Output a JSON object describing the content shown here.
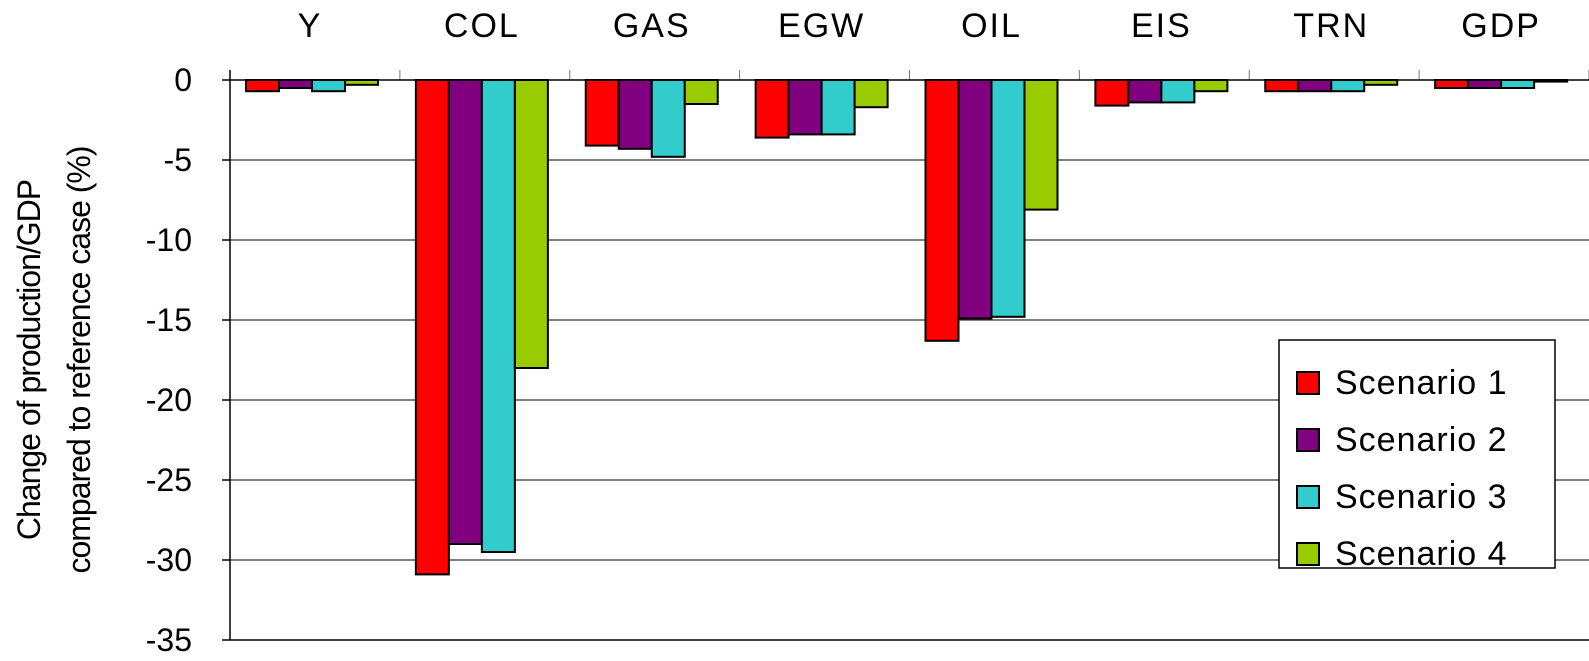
{
  "chart_data": {
    "type": "bar",
    "title": "",
    "xlabel": "",
    "ylabel": [
      "Change of production/GDP",
      "compared to reference case (%)"
    ],
    "categories": [
      "Y",
      "COL",
      "GAS",
      "EGW",
      "OIL",
      "EIS",
      "TRN",
      "GDP"
    ],
    "series": [
      {
        "name": "Scenario 1",
        "color": "#ff0000",
        "values": [
          -0.7,
          -30.9,
          -4.1,
          -3.6,
          -16.3,
          -1.6,
          -0.7,
          -0.5
        ]
      },
      {
        "name": "Scenario 2",
        "color": "#800080",
        "values": [
          -0.5,
          -29.0,
          -4.3,
          -3.4,
          -14.9,
          -1.4,
          -0.7,
          -0.5
        ]
      },
      {
        "name": "Scenario 3",
        "color": "#33cccc",
        "values": [
          -0.7,
          -29.5,
          -4.8,
          -3.4,
          -14.8,
          -1.4,
          -0.7,
          -0.5
        ]
      },
      {
        "name": "Scenario 4",
        "color": "#99cc00",
        "values": [
          -0.3,
          -18.0,
          -1.5,
          -1.7,
          -8.1,
          -0.7,
          -0.3,
          -0.1
        ]
      }
    ],
    "yticks": [
      0,
      -5,
      -10,
      -15,
      -20,
      -25,
      -30,
      -35
    ],
    "ylim": [
      -35,
      0
    ],
    "grid": true,
    "legend_position": "right"
  }
}
